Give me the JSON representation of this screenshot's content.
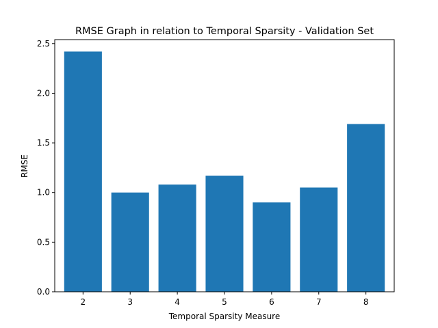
{
  "chart_data": {
    "type": "bar",
    "title": "RMSE Graph in relation to Temporal Sparsity - Validation Set",
    "xlabel": "Temporal Sparsity Measure",
    "ylabel": "RMSE",
    "categories": [
      "2",
      "3",
      "4",
      "5",
      "6",
      "7",
      "8"
    ],
    "values": [
      2.42,
      1.0,
      1.08,
      1.17,
      0.9,
      1.05,
      1.69
    ],
    "ylim": [
      0,
      2.54
    ],
    "yticks": [
      0.0,
      0.5,
      1.0,
      1.5,
      2.0,
      2.5
    ],
    "ytick_labels": [
      "0.0",
      "0.5",
      "1.0",
      "1.5",
      "2.0",
      "2.5"
    ],
    "bar_color": "#1f77b4",
    "grid": false,
    "legend": "none"
  }
}
